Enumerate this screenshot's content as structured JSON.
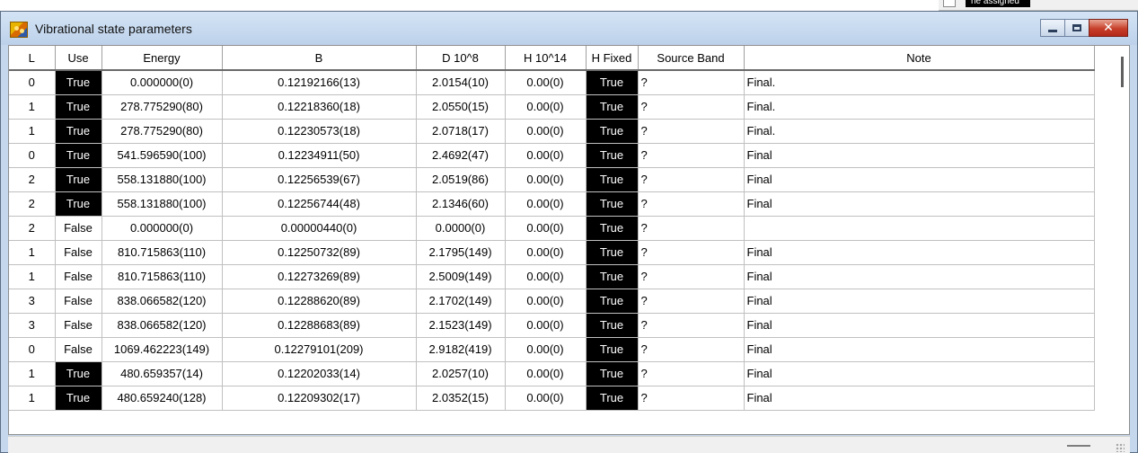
{
  "window": {
    "title": "Vibrational state parameters",
    "bg_label": "ne assigned"
  },
  "columns": [
    "L",
    "Use",
    "Energy",
    "B",
    "D 10^8",
    "H 10^14",
    "H Fixed",
    "Source Band",
    "Note"
  ],
  "rows": [
    [
      "0",
      "True",
      "0.000000(0)",
      "0.12192166(13)",
      "2.0154(10)",
      "0.00(0)",
      "True",
      "?",
      "Final."
    ],
    [
      "1",
      "True",
      "278.775290(80)",
      "0.12218360(18)",
      "2.0550(15)",
      "0.00(0)",
      "True",
      "?",
      "Final."
    ],
    [
      "1",
      "True",
      "278.775290(80)",
      "0.12230573(18)",
      "2.0718(17)",
      "0.00(0)",
      "True",
      "?",
      "Final."
    ],
    [
      "0",
      "True",
      "541.596590(100)",
      "0.12234911(50)",
      "2.4692(47)",
      "0.00(0)",
      "True",
      "?",
      "Final"
    ],
    [
      "2",
      "True",
      "558.131880(100)",
      "0.12256539(67)",
      "2.0519(86)",
      "0.00(0)",
      "True",
      "?",
      "Final"
    ],
    [
      "2",
      "True",
      "558.131880(100)",
      "0.12256744(48)",
      "2.1346(60)",
      "0.00(0)",
      "True",
      "?",
      "Final"
    ],
    [
      "2",
      "False",
      "0.000000(0)",
      "0.00000440(0)",
      "0.0000(0)",
      "0.00(0)",
      "True",
      "?",
      ""
    ],
    [
      "1",
      "False",
      "810.715863(110)",
      "0.12250732(89)",
      "2.1795(149)",
      "0.00(0)",
      "True",
      "?",
      "Final"
    ],
    [
      "1",
      "False",
      "810.715863(110)",
      "0.12273269(89)",
      "2.5009(149)",
      "0.00(0)",
      "True",
      "?",
      "Final"
    ],
    [
      "3",
      "False",
      "838.066582(120)",
      "0.12288620(89)",
      "2.1702(149)",
      "0.00(0)",
      "True",
      "?",
      "Final"
    ],
    [
      "3",
      "False",
      "838.066582(120)",
      "0.12288683(89)",
      "2.1523(149)",
      "0.00(0)",
      "True",
      "?",
      "Final"
    ],
    [
      "0",
      "False",
      "1069.462223(149)",
      "0.12279101(209)",
      "2.9182(419)",
      "0.00(0)",
      "True",
      "?",
      "Final"
    ],
    [
      "1",
      "True",
      "480.659357(14)",
      "0.12202033(14)",
      "2.0257(10)",
      "0.00(0)",
      "True",
      "?",
      "Final"
    ],
    [
      "1",
      "True",
      "480.659240(128)",
      "0.12209302(17)",
      "2.0352(15)",
      "0.00(0)",
      "True",
      "?",
      "Final"
    ]
  ],
  "colors": {
    "title_bg": "#c5d7ec",
    "true_cell_bg": "#000000",
    "close_red": "#c7402a"
  },
  "icons": {
    "app": "app-icon",
    "minimize": "minimize-icon",
    "maximize": "maximize-icon",
    "close": "close-icon"
  }
}
